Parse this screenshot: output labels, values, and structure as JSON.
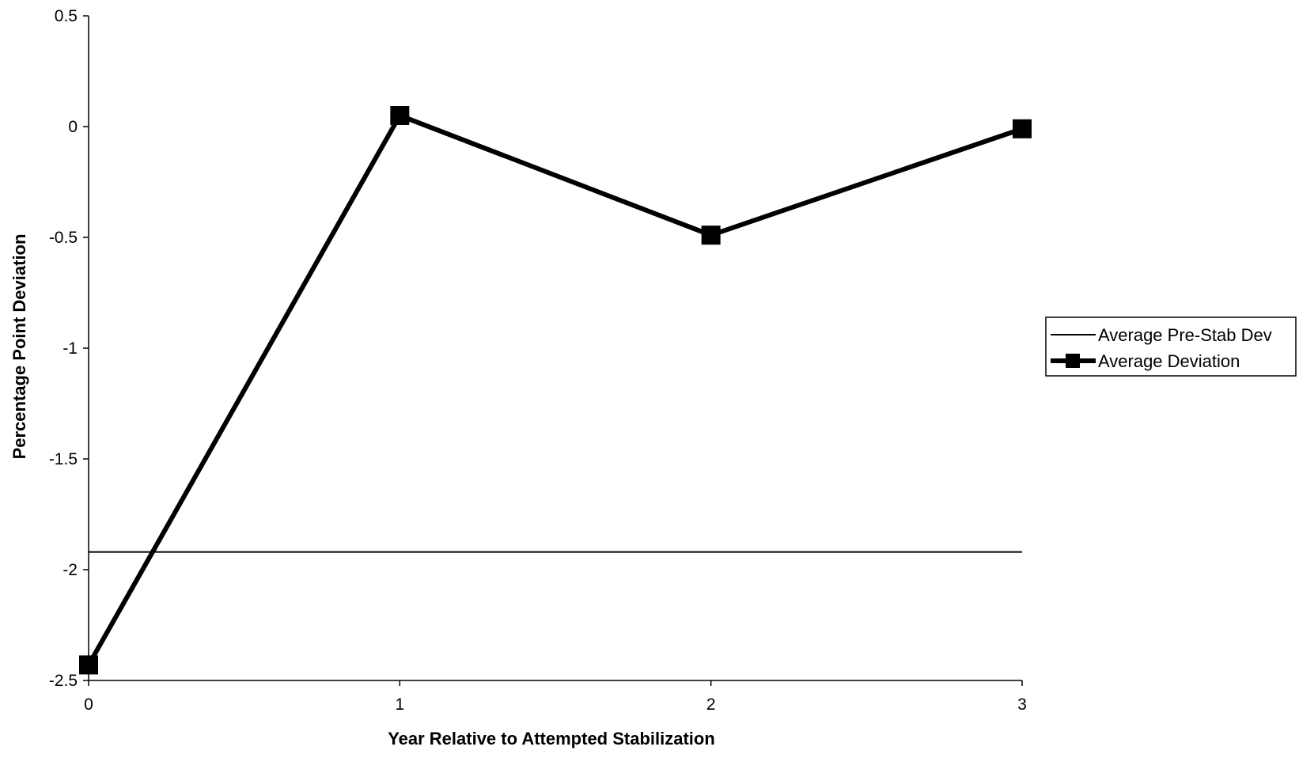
{
  "chart_data": {
    "type": "line",
    "title": "",
    "xlabel": "Year Relative to Attempted Stabilization",
    "ylabel": "Percentage Point Deviation",
    "x": [
      0,
      1,
      2,
      3
    ],
    "x_ticks": [
      "0",
      "1",
      "2",
      "3"
    ],
    "y_ticks": [
      "0.5",
      "0",
      "-0.5",
      "-1",
      "-1.5",
      "-2",
      "-2.5"
    ],
    "xlim": [
      0,
      3
    ],
    "ylim": [
      -2.5,
      0.5
    ],
    "grid": false,
    "legend_position": "right",
    "series": [
      {
        "name": "Average Pre-Stab Dev",
        "style": "thin-line",
        "color": "#000000",
        "values": [
          -1.92,
          -1.92,
          -1.92,
          -1.92
        ]
      },
      {
        "name": "Average Deviation",
        "style": "thick-line-square-markers",
        "color": "#000000",
        "values": [
          -2.43,
          0.05,
          -0.49,
          -0.01
        ]
      }
    ]
  }
}
